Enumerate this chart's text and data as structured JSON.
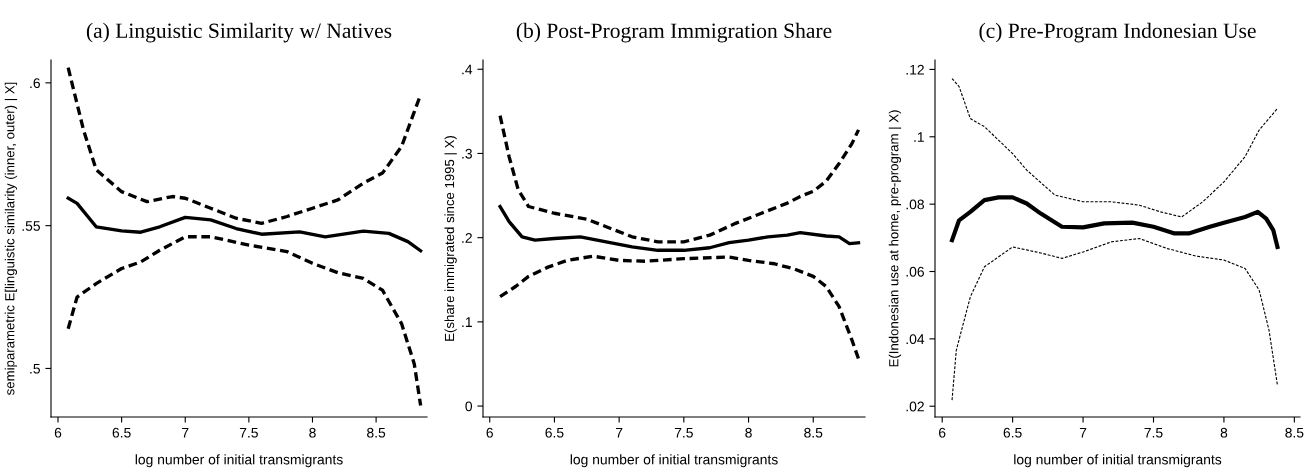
{
  "chart_data": [
    {
      "type": "line",
      "title": "(a) Linguistic Similarity w/ Natives",
      "xlabel": "log number of initial transmigrants",
      "ylabel": "semiparametric E[linguistic similarity (inner, outer) | X]",
      "xlim": [
        5.945,
        8.9
      ],
      "ylim": [
        0.483,
        0.608
      ],
      "xticks": [
        6,
        6.5,
        7,
        7.5,
        8,
        8.5
      ],
      "yticks": [
        {
          "value": 0.5,
          "label": ".5"
        },
        {
          "value": 0.55,
          "label": ".55"
        },
        {
          "value": 0.6,
          "label": ".6"
        }
      ],
      "grid": false,
      "legend": false,
      "series": [
        {
          "color": "#000000",
          "line_style": "solid",
          "x": [
            6.08,
            6.15,
            6.3,
            6.5,
            6.65,
            6.8,
            7.0,
            7.2,
            7.4,
            7.6,
            7.9,
            8.1,
            8.4,
            8.6,
            8.75,
            8.85
          ],
          "values": [
            0.5596,
            0.5578,
            0.5496,
            0.5482,
            0.5477,
            0.5496,
            0.5529,
            0.552,
            0.549,
            0.547,
            0.5478,
            0.5461,
            0.5481,
            0.5473,
            0.5444,
            0.5412
          ]
        },
        {
          "color": "#000000",
          "line_style": "dashed",
          "x": [
            6.08,
            6.2,
            6.3,
            6.5,
            6.7,
            6.9,
            7.0,
            7.2,
            7.4,
            7.6,
            7.8,
            8.0,
            8.2,
            8.4,
            8.55,
            8.7,
            8.85
          ],
          "values": [
            0.6053,
            0.5836,
            0.5696,
            0.5619,
            0.5584,
            0.5602,
            0.5596,
            0.5561,
            0.5526,
            0.5508,
            0.5532,
            0.5561,
            0.559,
            0.5649,
            0.5684,
            0.5777,
            0.5959
          ]
        },
        {
          "color": "#000000",
          "line_style": "dashed",
          "x": [
            6.08,
            6.15,
            6.3,
            6.5,
            6.65,
            6.8,
            7.0,
            7.2,
            7.5,
            7.8,
            8.0,
            8.2,
            8.4,
            8.55,
            8.7,
            8.8,
            8.85
          ],
          "values": [
            0.5139,
            0.525,
            0.5297,
            0.535,
            0.5373,
            0.5414,
            0.5461,
            0.5461,
            0.5432,
            0.5409,
            0.5368,
            0.5335,
            0.5315,
            0.5274,
            0.5157,
            0.5016,
            0.487
          ]
        }
      ]
    },
    {
      "type": "line",
      "title": "(b) Post-Program Immigration Share",
      "xlabel": "log number of initial transmigrants",
      "ylabel": "E(share immigrated since 1995 | X)",
      "xlim": [
        5.948,
        8.9
      ],
      "ylim": [
        -0.013,
        0.411
      ],
      "xticks": [
        6,
        6.5,
        7,
        7.5,
        8,
        8.5
      ],
      "yticks": [
        0,
        {
          "value": 0.1,
          "label": ".1"
        },
        {
          "value": 0.2,
          "label": ".2"
        },
        {
          "value": 0.3,
          "label": ".3"
        },
        {
          "value": 0.4,
          "label": ".4"
        }
      ],
      "grid": false,
      "legend": false,
      "series": [
        {
          "color": "#000000",
          "line_style": "solid",
          "x": [
            6.08,
            6.15,
            6.25,
            6.35,
            6.5,
            6.7,
            6.9,
            7.1,
            7.3,
            7.5,
            7.7,
            7.85,
            8.0,
            8.15,
            8.3,
            8.4,
            8.6,
            8.7,
            8.78,
            8.85
          ],
          "values": [
            0.237,
            0.219,
            0.201,
            0.197,
            0.199,
            0.201,
            0.195,
            0.189,
            0.185,
            0.185,
            0.188,
            0.194,
            0.197,
            0.201,
            0.203,
            0.206,
            0.202,
            0.201,
            0.193,
            0.194
          ]
        },
        {
          "color": "#000000",
          "line_style": "dashed",
          "x": [
            6.08,
            6.15,
            6.22,
            6.3,
            6.5,
            6.75,
            6.9,
            7.1,
            7.3,
            7.5,
            7.7,
            7.9,
            8.1,
            8.3,
            8.4,
            8.5,
            8.6,
            8.7,
            8.8,
            8.85
          ],
          "values": [
            0.345,
            0.296,
            0.257,
            0.237,
            0.229,
            0.222,
            0.213,
            0.201,
            0.195,
            0.195,
            0.203,
            0.217,
            0.229,
            0.241,
            0.249,
            0.255,
            0.267,
            0.288,
            0.312,
            0.328
          ]
        },
        {
          "color": "#000000",
          "line_style": "dashed",
          "x": [
            6.08,
            6.2,
            6.3,
            6.45,
            6.6,
            6.8,
            7.0,
            7.2,
            7.5,
            7.85,
            8.0,
            8.2,
            8.35,
            8.5,
            8.6,
            8.7,
            8.8,
            8.85
          ],
          "values": [
            0.13,
            0.142,
            0.154,
            0.165,
            0.173,
            0.178,
            0.173,
            0.172,
            0.175,
            0.177,
            0.173,
            0.169,
            0.163,
            0.154,
            0.142,
            0.118,
            0.078,
            0.056
          ]
        }
      ]
    },
    {
      "type": "line",
      "title": "(c) Pre-Program Indonesian Use",
      "xlabel": "log number of initial transmigrants",
      "ylabel": "E(Indonesian use at home, pre-program | X)",
      "xlim": [
        5.949,
        8.54
      ],
      "ylim": [
        0.0168,
        0.1228
      ],
      "xticks": [
        6,
        6.5,
        7,
        7.5,
        8,
        8.5
      ],
      "yticks": [
        {
          "value": 0.02,
          "label": ".02"
        },
        {
          "value": 0.04,
          "label": ".04"
        },
        {
          "value": 0.06,
          "label": ".06"
        },
        {
          "value": 0.08,
          "label": ".08"
        },
        {
          "value": 0.1,
          "label": ".1"
        },
        {
          "value": 0.12,
          "label": ".12"
        }
      ],
      "grid": false,
      "legend": false,
      "series": [
        {
          "color": "#000000",
          "line_style": "solid",
          "x": [
            6.07,
            6.12,
            6.2,
            6.3,
            6.4,
            6.5,
            6.6,
            6.7,
            6.85,
            7.0,
            7.15,
            7.35,
            7.5,
            7.65,
            7.75,
            7.9,
            8.0,
            8.15,
            8.24,
            8.3,
            8.35,
            8.38
          ],
          "values": [
            0.0693,
            0.0752,
            0.0777,
            0.0812,
            0.082,
            0.082,
            0.0802,
            0.0772,
            0.0733,
            0.0731,
            0.0743,
            0.0745,
            0.0733,
            0.0713,
            0.0713,
            0.0733,
            0.0745,
            0.0762,
            0.0777,
            0.0757,
            0.0723,
            0.0673
          ]
        },
        {
          "color": "#000000",
          "line_style": "dashed",
          "x": [
            6.07,
            6.12,
            6.2,
            6.3,
            6.5,
            6.6,
            6.8,
            7.0,
            7.2,
            7.4,
            7.55,
            7.7,
            7.85,
            8.0,
            8.15,
            8.25,
            8.38
          ],
          "values": [
            0.1173,
            0.1149,
            0.1054,
            0.103,
            0.095,
            0.0901,
            0.0827,
            0.0807,
            0.0807,
            0.0797,
            0.0777,
            0.0762,
            0.0807,
            0.0866,
            0.0941,
            0.102,
            0.1084
          ]
        },
        {
          "color": "#000000",
          "line_style": "dashed",
          "x": [
            6.07,
            6.1,
            6.2,
            6.3,
            6.5,
            6.7,
            6.85,
            7.0,
            7.2,
            7.4,
            7.6,
            7.8,
            8.0,
            8.15,
            8.25,
            8.32,
            8.38
          ],
          "values": [
            0.0218,
            0.0366,
            0.0525,
            0.0614,
            0.0673,
            0.0655,
            0.0639,
            0.0658,
            0.0688,
            0.0698,
            0.0668,
            0.0646,
            0.0634,
            0.0609,
            0.0545,
            0.0426,
            0.0262
          ]
        }
      ]
    }
  ]
}
